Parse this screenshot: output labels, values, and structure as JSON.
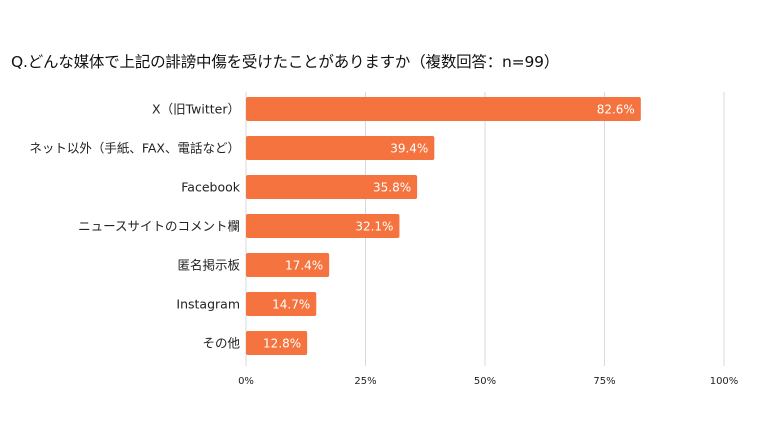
{
  "chart_data": {
    "type": "bar",
    "orientation": "horizontal",
    "title": "Q.どんな媒体で上記の誹謗中傷を受けたことがありますか（複数回答：n=99）",
    "categories": [
      "X（旧Twitter）",
      "ネット以外（手紙、FAX、電話など）",
      "Facebook",
      "ニュースサイトのコメント欄",
      "匿名掲示板",
      "Instagram",
      "その他"
    ],
    "values": [
      82.6,
      39.4,
      35.8,
      32.1,
      17.4,
      14.7,
      12.8
    ],
    "value_labels": [
      "82.6%",
      "39.4%",
      "35.8%",
      "32.1%",
      "17.4%",
      "14.7%",
      "12.8%"
    ],
    "xlim": [
      0,
      100
    ],
    "x_ticks": [
      0,
      25,
      50,
      75,
      100
    ],
    "x_tick_labels": [
      "0%",
      "25%",
      "50%",
      "75%",
      "100%"
    ],
    "grid": "vertical",
    "legend": "none",
    "bar_color": "#f4733f"
  }
}
